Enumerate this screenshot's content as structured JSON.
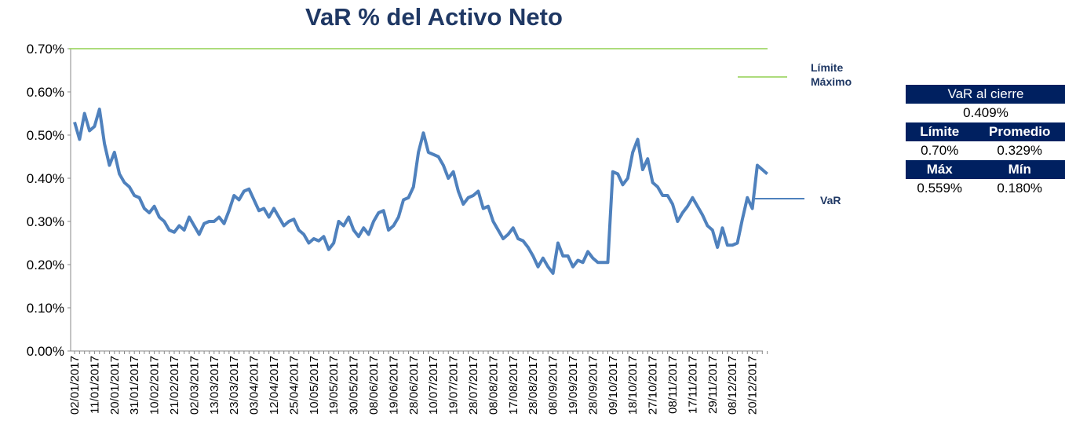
{
  "chart_data": {
    "type": "line",
    "title": "VaR % del Activo Neto",
    "categories": [
      "02/01/2017",
      null,
      null,
      null,
      "11/01/2017",
      null,
      null,
      null,
      "20/01/2017",
      null,
      null,
      null,
      "31/01/2017",
      null,
      null,
      null,
      "10/02/2017",
      null,
      null,
      null,
      "21/02/2017",
      null,
      null,
      null,
      "02/03/2017",
      null,
      null,
      null,
      "13/03/2017",
      null,
      null,
      null,
      "23/03/2017",
      null,
      null,
      null,
      "03/04/2017",
      null,
      null,
      null,
      "12/04/2017",
      null,
      null,
      null,
      "25/04/2017",
      null,
      null,
      null,
      "10/05/2017",
      null,
      null,
      null,
      "19/05/2017",
      null,
      null,
      null,
      "30/05/2017",
      null,
      null,
      null,
      "08/06/2017",
      null,
      null,
      null,
      "19/06/2017",
      null,
      null,
      null,
      "28/06/2017",
      null,
      null,
      null,
      "10/07/2017",
      null,
      null,
      null,
      "19/07/2017",
      null,
      null,
      null,
      "28/07/2017",
      null,
      null,
      null,
      "08/08/2017",
      null,
      null,
      null,
      "17/08/2017",
      null,
      null,
      null,
      "28/08/2017",
      null,
      null,
      null,
      "08/09/2017",
      null,
      null,
      null,
      "19/09/2017",
      null,
      null,
      null,
      "28/09/2017",
      null,
      null,
      null,
      "09/10/2017",
      null,
      null,
      null,
      "18/10/2017",
      null,
      null,
      null,
      "27/10/2017",
      null,
      null,
      null,
      "08/11/2017",
      null,
      null,
      null,
      "17/11/2017",
      null,
      null,
      null,
      "29/11/2017",
      null,
      null,
      null,
      "08/12/2017",
      null,
      null,
      null,
      "20/12/2017",
      null,
      null,
      null
    ],
    "series": [
      {
        "name": "VaR",
        "color": "#4f81bd",
        "values": [
          0.53,
          0.49,
          0.55,
          0.51,
          0.52,
          0.56,
          0.48,
          0.43,
          0.46,
          0.41,
          0.39,
          0.38,
          0.36,
          0.355,
          0.33,
          0.32,
          0.335,
          0.31,
          0.3,
          0.28,
          0.275,
          0.29,
          0.28,
          0.31,
          0.29,
          0.27,
          0.295,
          0.3,
          0.3,
          0.31,
          0.295,
          0.325,
          0.36,
          0.35,
          0.37,
          0.375,
          0.35,
          0.325,
          0.33,
          0.31,
          0.33,
          0.31,
          0.29,
          0.3,
          0.305,
          0.28,
          0.27,
          0.25,
          0.26,
          0.255,
          0.265,
          0.235,
          0.25,
          0.3,
          0.29,
          0.31,
          0.28,
          0.265,
          0.285,
          0.27,
          0.3,
          0.32,
          0.325,
          0.28,
          0.29,
          0.31,
          0.35,
          0.355,
          0.38,
          0.46,
          0.505,
          0.46,
          0.455,
          0.45,
          0.43,
          0.4,
          0.415,
          0.37,
          0.34,
          0.355,
          0.36,
          0.37,
          0.33,
          0.335,
          0.3,
          0.28,
          0.26,
          0.27,
          0.285,
          0.26,
          0.255,
          0.24,
          0.22,
          0.195,
          0.215,
          0.195,
          0.18,
          0.25,
          0.22,
          0.22,
          0.195,
          0.21,
          0.205,
          0.23,
          0.215,
          0.205,
          0.205,
          0.205,
          0.415,
          0.41,
          0.385,
          0.4,
          0.46,
          0.49,
          0.42,
          0.445,
          0.39,
          0.38,
          0.36,
          0.36,
          0.34,
          0.3,
          0.32,
          0.335,
          0.355,
          0.335,
          0.315,
          0.29,
          0.28,
          0.24,
          0.285,
          0.245,
          0.245,
          0.25,
          0.305,
          0.355,
          0.33,
          0.43,
          0.42,
          0.41
        ]
      },
      {
        "name": "Límite Máximo",
        "color": "#92d050",
        "value": 0.7
      }
    ],
    "ylim": [
      0,
      0.7
    ],
    "yticks": [
      {
        "value": 0,
        "label": "0.00%"
      },
      {
        "value": 0.1,
        "label": "0.10%"
      },
      {
        "value": 0.2,
        "label": "0.20%"
      },
      {
        "value": 0.3,
        "label": "0.30%"
      },
      {
        "value": 0.4,
        "label": "0.40%"
      },
      {
        "value": 0.5,
        "label": "0.50%"
      },
      {
        "value": 0.6,
        "label": "0.60%"
      },
      {
        "value": 0.7,
        "label": "0.70%"
      }
    ]
  },
  "table": {
    "title": "VaR al cierre",
    "value": "0.409%",
    "rows": [
      [
        "Límite",
        "Promedio"
      ],
      [
        "0.70%",
        "0.329%"
      ],
      [
        "Máx",
        "Mín"
      ],
      [
        "0.559%",
        "0.180%"
      ]
    ]
  }
}
